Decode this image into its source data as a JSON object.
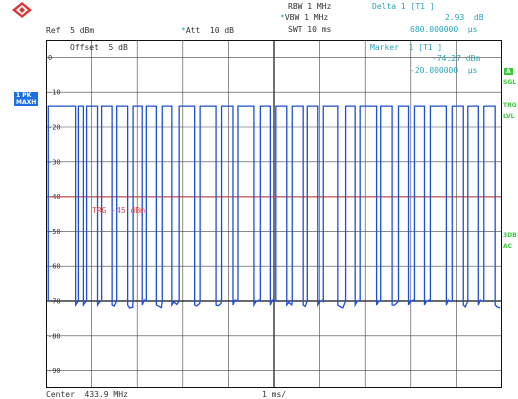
{
  "header": {
    "rbw": "RBW 1 MHz",
    "vbw": "VBW 1 MHz",
    "swt": "SWT 10 ms",
    "ref": "Ref  5 dBm",
    "att": "Att  10 dB",
    "delta_title": "Delta 1 [T1 ]",
    "delta_value": "2.93  dB",
    "delta_time": "680.000000  µs"
  },
  "plot": {
    "offset_label": "Offset  5 dB",
    "marker_title": "Marker  1 [T1 ]",
    "marker_value": "-74.27 dBm",
    "marker_time": "-20.000000  µs",
    "trg_label": "TRG -45 dBm",
    "y_ticks": [
      "0",
      "-10",
      "-20",
      "-30",
      "-40",
      "-50",
      "-60",
      "-70",
      "-80",
      "-90"
    ]
  },
  "side": {
    "left_tag_1": "1 PK",
    "left_tag_2": "MAXH",
    "right_a": "A",
    "right_sgl": "SGL",
    "right_trg": "TRG",
    "right_lvl": "LVL",
    "right_3db": "3DB",
    "right_ac": "AC"
  },
  "footer": {
    "center": "Center  433.9 MHz",
    "span": "1 ms/"
  },
  "chart_data": {
    "type": "line",
    "ylabel": "",
    "xlabel": "",
    "ylim": [
      -100,
      0
    ],
    "x_divisions": 10,
    "trigger_level_dbm": -45,
    "series": [
      {
        "values_description_free": true,
        "pulse_high_dbm": -14,
        "pulse_low_dbm": -73,
        "pulses": [
          [
            0.05,
            0.65
          ],
          [
            0.71,
            0.82
          ],
          [
            0.89,
            1.13
          ],
          [
            1.22,
            1.45
          ],
          [
            1.55,
            1.79
          ],
          [
            1.91,
            2.11
          ],
          [
            2.2,
            2.42
          ],
          [
            2.55,
            2.76
          ],
          [
            2.92,
            3.26
          ],
          [
            3.38,
            3.73
          ],
          [
            3.85,
            4.1
          ],
          [
            4.21,
            4.56
          ],
          [
            4.7,
            4.92
          ],
          [
            5.04,
            5.28
          ],
          [
            5.4,
            5.64
          ],
          [
            5.73,
            5.96
          ],
          [
            6.08,
            6.4
          ],
          [
            6.57,
            6.78
          ],
          [
            6.89,
            7.25
          ],
          [
            7.34,
            7.59
          ],
          [
            7.73,
            7.95
          ],
          [
            8.08,
            8.3
          ],
          [
            8.43,
            8.78
          ],
          [
            8.91,
            9.15
          ],
          [
            9.25,
            9.48
          ],
          [
            9.6,
            9.85
          ]
        ]
      }
    ]
  }
}
